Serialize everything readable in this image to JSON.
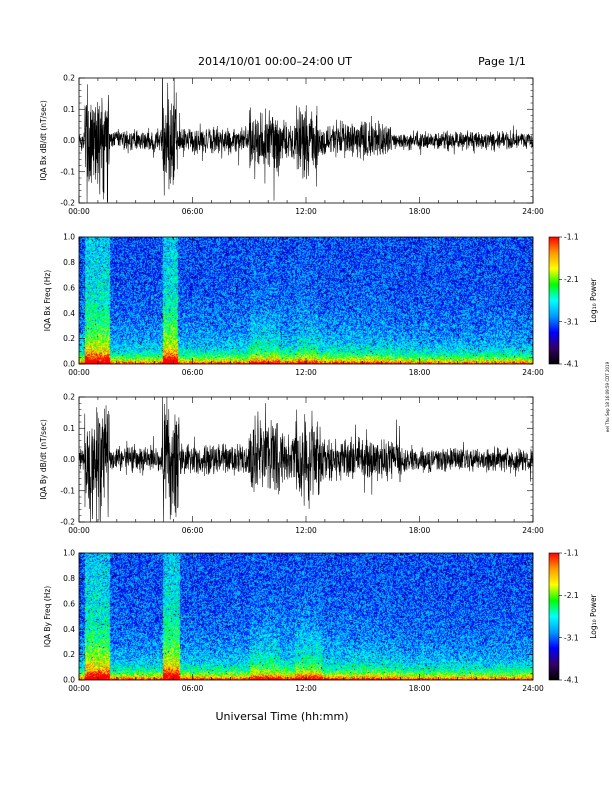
{
  "header": {
    "title": "2014/10/01   00:00–24:00 UT",
    "page": "Page 1/1"
  },
  "footer": {
    "xlabel": "Universal Time (hh:mm)"
  },
  "side_note": "eel Thu Sep 18 16:09:59 CDT 2019",
  "colorbar": {
    "label": "Log₁₀ Power",
    "ticks": [
      "-1.1",
      "-2.1",
      "-3.1",
      "-4.1"
    ],
    "colors": [
      "#ff0000",
      "#ff9900",
      "#ffff00",
      "#00ff00",
      "#00ffff",
      "#0099ff",
      "#0000ff",
      "#330066",
      "#000000"
    ]
  },
  "chart_data": [
    {
      "type": "line",
      "title": "",
      "ylabel": "IQA Bx dB/dt (nT/sec)",
      "xlabel": "",
      "xlim": [
        "00:00",
        "24:00"
      ],
      "ylim": [
        -0.2,
        0.2
      ],
      "x_ticks": [
        "00:00",
        "06:00",
        "12:00",
        "18:00",
        "24:00"
      ],
      "y_ticks": [
        "0.2",
        "0.1",
        "0.0",
        "-0.1",
        "-0.2"
      ],
      "activity": [
        {
          "start_h": 0.0,
          "end_h": 0.3,
          "amp": 0.04
        },
        {
          "start_h": 0.3,
          "end_h": 1.6,
          "amp": 0.22
        },
        {
          "start_h": 1.6,
          "end_h": 4.4,
          "amp": 0.04
        },
        {
          "start_h": 4.4,
          "end_h": 5.2,
          "amp": 0.24
        },
        {
          "start_h": 5.2,
          "end_h": 9.0,
          "amp": 0.05
        },
        {
          "start_h": 9.0,
          "end_h": 10.6,
          "amp": 0.13
        },
        {
          "start_h": 10.6,
          "end_h": 11.5,
          "amp": 0.07
        },
        {
          "start_h": 11.5,
          "end_h": 12.6,
          "amp": 0.13
        },
        {
          "start_h": 12.6,
          "end_h": 16.5,
          "amp": 0.07
        },
        {
          "start_h": 16.5,
          "end_h": 24.0,
          "amp": 0.035
        }
      ]
    },
    {
      "type": "heatmap",
      "title": "",
      "ylabel": "IQA Bx Freq (Hz)",
      "xlabel": "",
      "xlim": [
        "00:00",
        "24:00"
      ],
      "ylim": [
        0.0,
        1.0
      ],
      "x_ticks": [
        "00:00",
        "06:00",
        "12:00",
        "18:00",
        "24:00"
      ],
      "y_ticks": [
        "1.0",
        "0.8",
        "0.6",
        "0.4",
        "0.2",
        "0.0"
      ],
      "zlabel": "Log₁₀ Power",
      "zlim": [
        -4.1,
        -1.1
      ]
    },
    {
      "type": "line",
      "title": "",
      "ylabel": "IQA By dB/dt (nT/sec)",
      "xlabel": "",
      "xlim": [
        "00:00",
        "24:00"
      ],
      "ylim": [
        -0.2,
        0.2
      ],
      "x_ticks": [
        "00:00",
        "06:00",
        "12:00",
        "18:00",
        "24:00"
      ],
      "y_ticks": [
        "0.2",
        "0.1",
        "0.0",
        "-0.1",
        "-0.2"
      ],
      "activity": [
        {
          "start_h": 0.0,
          "end_h": 0.3,
          "amp": 0.05
        },
        {
          "start_h": 0.3,
          "end_h": 1.6,
          "amp": 0.22
        },
        {
          "start_h": 1.6,
          "end_h": 4.4,
          "amp": 0.05
        },
        {
          "start_h": 4.4,
          "end_h": 5.3,
          "amp": 0.24
        },
        {
          "start_h": 5.3,
          "end_h": 9.0,
          "amp": 0.06
        },
        {
          "start_h": 9.0,
          "end_h": 10.6,
          "amp": 0.15
        },
        {
          "start_h": 10.6,
          "end_h": 11.4,
          "amp": 0.09
        },
        {
          "start_h": 11.4,
          "end_h": 12.8,
          "amp": 0.17
        },
        {
          "start_h": 12.8,
          "end_h": 17.0,
          "amp": 0.08
        },
        {
          "start_h": 17.0,
          "end_h": 24.0,
          "amp": 0.045
        }
      ]
    },
    {
      "type": "heatmap",
      "title": "",
      "ylabel": "IQA By Freq (Hz)",
      "xlabel": "",
      "xlim": [
        "00:00",
        "24:00"
      ],
      "ylim": [
        0.0,
        1.0
      ],
      "x_ticks": [
        "00:00",
        "06:00",
        "12:00",
        "18:00",
        "24:00"
      ],
      "y_ticks": [
        "1.0",
        "0.8",
        "0.6",
        "0.4",
        "0.2",
        "0.0"
      ],
      "zlabel": "Log₁₀ Power",
      "zlim": [
        -4.1,
        -1.1
      ]
    }
  ]
}
